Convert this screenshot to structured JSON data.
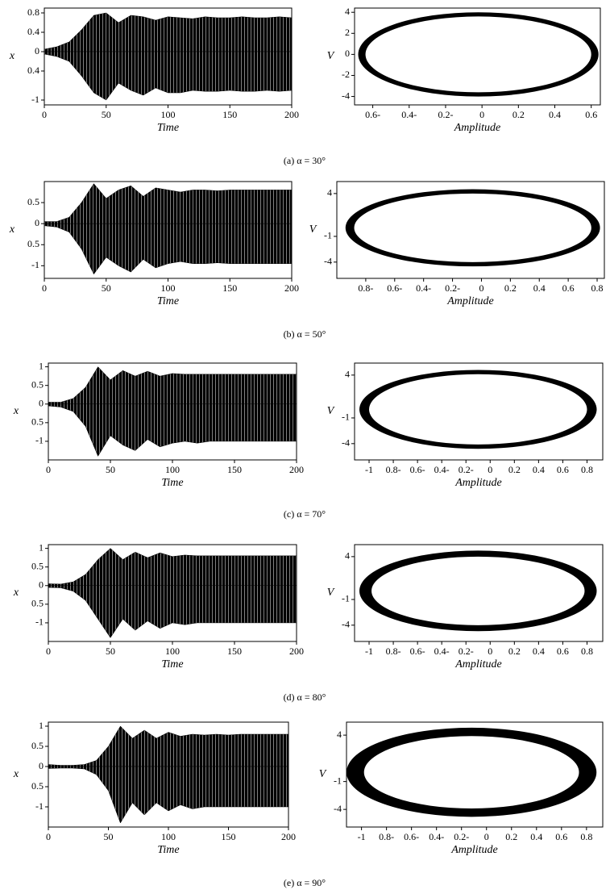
{
  "captions": [
    "(a) α = 30°",
    "(b) α = 50°",
    "(c) α = 70°",
    "(d) α = 80°",
    "(e) α = 90°"
  ],
  "chart_data": [
    {
      "type": "band",
      "xlabel": "Time",
      "ylabel": "x",
      "xlim": [
        0,
        200
      ],
      "ylim": [
        -1.1,
        0.9
      ],
      "xticks": [
        0,
        50,
        100,
        150,
        200
      ],
      "yticks": [
        0.8,
        0.4,
        0,
        {
          "value": -0.4,
          "label": "0.4"
        },
        -1
      ],
      "x": [
        0,
        10,
        20,
        30,
        40,
        50,
        60,
        70,
        80,
        90,
        100,
        110,
        120,
        130,
        140,
        150,
        160,
        170,
        180,
        190,
        200
      ],
      "series": [
        {
          "color": "#000000",
          "values": [
            0.05,
            0.1,
            0.2,
            0.45,
            0.75,
            0.8,
            0.6,
            0.75,
            0.72,
            0.65,
            0.72,
            0.7,
            0.68,
            0.72,
            0.7,
            0.7,
            0.72,
            0.7,
            0.7,
            0.72,
            0.7
          ]
        },
        {
          "color": "#000000",
          "values": [
            -0.05,
            -0.1,
            -0.2,
            -0.5,
            -0.85,
            -1.0,
            -0.65,
            -0.8,
            -0.9,
            -0.75,
            -0.85,
            -0.85,
            -0.8,
            -0.82,
            -0.82,
            -0.8,
            -0.82,
            -0.82,
            -0.8,
            -0.82,
            -0.8
          ]
        }
      ]
    },
    {
      "type": "ring",
      "xlabel": "Amplitude",
      "ylabel": "V",
      "xlim": [
        -0.7,
        0.65
      ],
      "ylim": [
        -4.8,
        4.4
      ],
      "xticks": [
        {
          "value": -0.6,
          "label": "0.6-"
        },
        {
          "value": -0.4,
          "label": "0.4-"
        },
        {
          "value": -0.2,
          "label": "0.2-"
        },
        0,
        0.2,
        0.4,
        0.6
      ],
      "yticks": [
        4,
        2,
        0,
        -2,
        -4
      ],
      "color": "#000000",
      "center": [
        -0.02,
        0
      ],
      "outer": [
        0.66,
        4.0
      ],
      "inner": [
        0.62,
        3.6
      ]
    },
    {
      "type": "band",
      "xlabel": "Time",
      "ylabel": "x",
      "xlim": [
        0,
        200
      ],
      "ylim": [
        -1.3,
        1.0
      ],
      "xticks": [
        0,
        50,
        100,
        150,
        200
      ],
      "yticks": [
        0.5,
        0,
        {
          "value": -0.5,
          "label": "0.5"
        },
        -1
      ],
      "x": [
        0,
        10,
        20,
        30,
        40,
        50,
        60,
        70,
        80,
        90,
        100,
        110,
        120,
        130,
        140,
        150,
        160,
        170,
        180,
        190,
        200
      ],
      "series": [
        {
          "color": "#000000",
          "values": [
            0.05,
            0.05,
            0.15,
            0.5,
            0.95,
            0.6,
            0.8,
            0.9,
            0.65,
            0.85,
            0.8,
            0.75,
            0.8,
            0.8,
            0.78,
            0.8,
            0.8,
            0.8,
            0.8,
            0.8,
            0.8
          ]
        },
        {
          "color": "#000000",
          "values": [
            -0.05,
            -0.08,
            -0.2,
            -0.6,
            -1.2,
            -0.8,
            -1.0,
            -1.15,
            -0.85,
            -1.05,
            -0.95,
            -0.9,
            -0.95,
            -0.95,
            -0.93,
            -0.95,
            -0.95,
            -0.95,
            -0.95,
            -0.95,
            -0.95
          ]
        }
      ]
    },
    {
      "type": "ring",
      "xlabel": "Amplitude",
      "ylabel": "V",
      "xlim": [
        -1.0,
        0.85
      ],
      "ylim": [
        -5.9,
        5.4
      ],
      "xticks": [
        {
          "value": -0.8,
          "label": "0.8-"
        },
        {
          "value": -0.6,
          "label": "0.6-"
        },
        {
          "value": -0.4,
          "label": "0.4-"
        },
        {
          "value": -0.2,
          "label": "0.2-"
        },
        0,
        0.2,
        0.4,
        0.6,
        0.8
      ],
      "yticks": [
        4,
        -1,
        -4
      ],
      "color": "#000000",
      "center": [
        -0.06,
        0
      ],
      "outer": [
        0.88,
        4.5
      ],
      "inner": [
        0.82,
        4.0
      ]
    },
    {
      "type": "band",
      "xlabel": "Time",
      "ylabel": "x",
      "xlim": [
        0,
        200
      ],
      "ylim": [
        -1.5,
        1.1
      ],
      "xticks": [
        0,
        50,
        100,
        150,
        200
      ],
      "yticks": [
        1,
        0.5,
        0,
        {
          "value": -0.5,
          "label": "0.5"
        },
        -1
      ],
      "x": [
        0,
        10,
        20,
        30,
        40,
        50,
        60,
        70,
        80,
        90,
        100,
        110,
        120,
        130,
        140,
        150,
        160,
        170,
        180,
        190,
        200
      ],
      "series": [
        {
          "color": "#000000",
          "values": [
            0.05,
            0.05,
            0.15,
            0.45,
            1.0,
            0.65,
            0.9,
            0.75,
            0.88,
            0.75,
            0.82,
            0.8,
            0.8,
            0.8,
            0.8,
            0.8,
            0.8,
            0.8,
            0.8,
            0.8,
            0.8
          ]
        },
        {
          "color": "#000000",
          "values": [
            -0.05,
            -0.08,
            -0.2,
            -0.6,
            -1.4,
            -0.85,
            -1.1,
            -1.25,
            -0.95,
            -1.15,
            -1.05,
            -1.0,
            -1.05,
            -1.0,
            -1.0,
            -1.0,
            -1.0,
            -1.0,
            -1.0,
            -1.0,
            -1.0
          ]
        }
      ]
    },
    {
      "type": "ring",
      "xlabel": "Amplitude",
      "ylabel": "V",
      "xlim": [
        -1.12,
        0.93
      ],
      "ylim": [
        -5.9,
        5.4
      ],
      "xticks": [
        -1,
        {
          "value": -0.8,
          "label": "0.8-"
        },
        {
          "value": -0.6,
          "label": "0.6-"
        },
        {
          "value": -0.4,
          "label": "0.4-"
        },
        {
          "value": -0.2,
          "label": "0.2-"
        },
        0,
        0.2,
        0.4,
        0.6,
        0.8
      ],
      "yticks": [
        4,
        -1,
        -4
      ],
      "color": "#000000",
      "center": [
        -0.1,
        0
      ],
      "outer": [
        0.98,
        4.6
      ],
      "inner": [
        0.9,
        4.1
      ]
    },
    {
      "type": "band",
      "xlabel": "Time",
      "ylabel": "x",
      "xlim": [
        0,
        200
      ],
      "ylim": [
        -1.5,
        1.1
      ],
      "xticks": [
        0,
        50,
        100,
        150,
        200
      ],
      "yticks": [
        1,
        0.5,
        0,
        {
          "value": -0.5,
          "label": "0.5"
        },
        -1
      ],
      "x": [
        0,
        10,
        20,
        30,
        40,
        50,
        60,
        70,
        80,
        90,
        100,
        110,
        120,
        130,
        140,
        150,
        160,
        170,
        180,
        190,
        200
      ],
      "series": [
        {
          "color": "#000000",
          "values": [
            0.05,
            0.04,
            0.1,
            0.3,
            0.7,
            1.0,
            0.7,
            0.9,
            0.75,
            0.88,
            0.78,
            0.82,
            0.8,
            0.8,
            0.8,
            0.8,
            0.8,
            0.8,
            0.8,
            0.8,
            0.8
          ]
        },
        {
          "color": "#000000",
          "values": [
            -0.05,
            -0.06,
            -0.15,
            -0.4,
            -0.9,
            -1.4,
            -0.9,
            -1.2,
            -0.95,
            -1.15,
            -1.0,
            -1.05,
            -1.0,
            -1.0,
            -1.0,
            -1.0,
            -1.0,
            -1.0,
            -1.0,
            -1.0,
            -1.0
          ]
        }
      ]
    },
    {
      "type": "ring",
      "xlabel": "Amplitude",
      "ylabel": "V",
      "xlim": [
        -1.12,
        0.93
      ],
      "ylim": [
        -5.9,
        5.4
      ],
      "xticks": [
        -1,
        {
          "value": -0.8,
          "label": "0.8-"
        },
        {
          "value": -0.6,
          "label": "0.6-"
        },
        {
          "value": -0.4,
          "label": "0.4-"
        },
        {
          "value": -0.2,
          "label": "0.2-"
        },
        0,
        0.2,
        0.4,
        0.6,
        0.8
      ],
      "yticks": [
        4,
        -1,
        -4
      ],
      "color": "#000000",
      "center": [
        -0.1,
        0
      ],
      "outer": [
        0.98,
        4.7
      ],
      "inner": [
        0.88,
        4.0
      ]
    },
    {
      "type": "band",
      "xlabel": "Time",
      "ylabel": "x",
      "xlim": [
        0,
        200
      ],
      "ylim": [
        -1.5,
        1.1
      ],
      "xticks": [
        0,
        50,
        100,
        150,
        200
      ],
      "yticks": [
        1,
        0.5,
        0,
        {
          "value": -0.5,
          "label": "0.5"
        },
        -1
      ],
      "x": [
        0,
        10,
        20,
        30,
        40,
        50,
        60,
        70,
        80,
        90,
        100,
        110,
        120,
        130,
        140,
        150,
        160,
        170,
        180,
        190,
        200
      ],
      "series": [
        {
          "color": "#000000",
          "values": [
            0.05,
            0.03,
            0.03,
            0.05,
            0.15,
            0.5,
            1.0,
            0.7,
            0.9,
            0.7,
            0.85,
            0.75,
            0.8,
            0.78,
            0.8,
            0.78,
            0.8,
            0.8,
            0.8,
            0.8,
            0.8
          ]
        },
        {
          "color": "#000000",
          "values": [
            -0.05,
            -0.04,
            -0.04,
            -0.06,
            -0.2,
            -0.6,
            -1.4,
            -0.9,
            -1.2,
            -0.9,
            -1.1,
            -0.95,
            -1.05,
            -1.0,
            -1.0,
            -1.0,
            -1.0,
            -1.0,
            -1.0,
            -1.0,
            -1.0
          ]
        }
      ]
    },
    {
      "type": "ring",
      "xlabel": "Amplitude",
      "ylabel": "V",
      "xlim": [
        -1.12,
        0.93
      ],
      "ylim": [
        -5.9,
        5.4
      ],
      "xticks": [
        -1,
        {
          "value": -0.8,
          "label": "0.8-"
        },
        {
          "value": -0.6,
          "label": "0.6-"
        },
        {
          "value": -0.4,
          "label": "0.4-"
        },
        {
          "value": -0.2,
          "label": "0.2-"
        },
        0,
        0.2,
        0.4,
        0.6,
        0.8
      ],
      "yticks": [
        4,
        -1,
        -4
      ],
      "color": "#000000",
      "center": [
        -0.12,
        0
      ],
      "outer": [
        1.0,
        4.8
      ],
      "inner": [
        0.86,
        3.9
      ]
    }
  ]
}
